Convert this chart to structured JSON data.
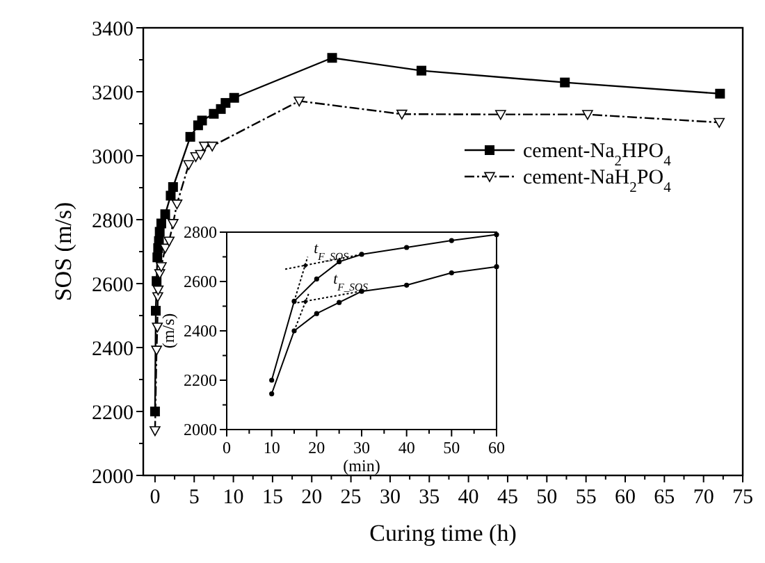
{
  "chart_data": [
    {
      "type": "line",
      "xlabel": "Curing time (h)",
      "ylabel": "SOS (m/s)",
      "xlim": [
        -1.5,
        75
      ],
      "ylim": [
        2000,
        3400
      ],
      "xticks": [
        0,
        {
          "value": 2.5,
          "label": null
        },
        5,
        {
          "value": 7.5,
          "label": null
        },
        10,
        {
          "value": 12.5,
          "label": null
        },
        15,
        {
          "value": 17.5,
          "label": null
        },
        20,
        {
          "value": 22.5,
          "label": null
        },
        25,
        {
          "value": 27.5,
          "label": null
        },
        30,
        {
          "value": 32.5,
          "label": null
        },
        35,
        {
          "value": 37.5,
          "label": null
        },
        40,
        {
          "value": 42.5,
          "label": null
        },
        45,
        {
          "value": 47.5,
          "label": null
        },
        50,
        {
          "value": 52.5,
          "label": null
        },
        55,
        {
          "value": 57.5,
          "label": null
        },
        60,
        {
          "value": 62.5,
          "label": null
        },
        65,
        {
          "value": 67.5,
          "label": null
        },
        70,
        {
          "value": 72.5,
          "label": null
        },
        75
      ],
      "yticks": [
        2000,
        {
          "value": 2100,
          "label": null
        },
        2200,
        {
          "value": 2300,
          "label": null
        },
        2400,
        {
          "value": 2500,
          "label": null
        },
        2600,
        {
          "value": 2700,
          "label": null
        },
        2800,
        {
          "value": 2900,
          "label": null
        },
        3000,
        {
          "value": 3100,
          "label": null
        },
        3200,
        {
          "value": 3300,
          "label": null
        },
        3400
      ],
      "grid": false,
      "legend": "right",
      "series": [
        {
          "name": "cement-Na$_{2}$HPO$_{4}$",
          "color": "#000000",
          "marker": "square",
          "line_style": "solid",
          "x": [
            0,
            0.1,
            0.2,
            0.3,
            0.4,
            0.5,
            0.6,
            0.8,
            1.3,
            2.0,
            2.3,
            4.5,
            5.5,
            6.0,
            7.5,
            8.4,
            9.0,
            10.1,
            22.6,
            34.0,
            52.3,
            72.1
          ],
          "values": [
            2200,
            2515,
            2608,
            2682,
            2711,
            2733,
            2762,
            2788,
            2817,
            2875,
            2902,
            3059,
            3095,
            3110,
            3131,
            3146,
            3165,
            3181,
            3306,
            3266,
            3229,
            3194
          ]
        },
        {
          "name": "cement-NaH$_{2}$PO$_{4}$",
          "color": "#000000",
          "marker": "triangle",
          "line_style": "dashed",
          "x": [
            0,
            0.2,
            0.3,
            0.35,
            0.4,
            0.6,
            0.8,
            1.3,
            1.8,
            2.3,
            2.8,
            4.3,
            5.2,
            5.8,
            6.3,
            7.3,
            18.4,
            31.5,
            44.1,
            55.2,
            72.0
          ],
          "values": [
            2140,
            2392,
            2464,
            2559,
            2580,
            2631,
            2653,
            2711,
            2733,
            2788,
            2849,
            2972,
            2997,
            3004,
            3030,
            3030,
            3171,
            3130,
            3129,
            3129,
            3104
          ]
        }
      ]
    },
    {
      "type": "line",
      "xlabel": "(min)",
      "ylabel": "(m/s)",
      "xlim": [
        0,
        60
      ],
      "ylim": [
        2000,
        2800
      ],
      "xticks": [
        0,
        {
          "value": 5,
          "label": null
        },
        10,
        {
          "value": 15,
          "label": null
        },
        20,
        {
          "value": 25,
          "label": null
        },
        30,
        {
          "value": 35,
          "label": null
        },
        40,
        {
          "value": 45,
          "label": null
        },
        50,
        {
          "value": 55,
          "label": null
        },
        60
      ],
      "yticks": [
        2000,
        {
          "value": 2100,
          "label": null
        },
        2200,
        {
          "value": 2300,
          "label": null
        },
        2400,
        {
          "value": 2500,
          "label": null
        },
        2600,
        {
          "value": 2700,
          "label": null
        },
        2800
      ],
      "grid": false,
      "legend": false,
      "annotations": [
        {
          "text": "t$_{F_SOS}$",
          "x": 17.5,
          "y": 2665
        },
        {
          "text": "t$_{F_SOS}$",
          "x": 17.5,
          "y": 2518
        }
      ],
      "series": [
        {
          "color": "#000000",
          "marker": "circle",
          "line_style": "solid",
          "x": [
            10,
            15,
            20,
            25,
            30,
            40,
            50,
            60
          ],
          "values": [
            2200,
            2520,
            2610,
            2680,
            2710,
            2738,
            2766,
            2790
          ]
        },
        {
          "color": "#000000",
          "marker": "circle",
          "line_style": "solid",
          "x": [
            10,
            15,
            20,
            25,
            30,
            40,
            50,
            60
          ],
          "values": [
            2145,
            2400,
            2470,
            2515,
            2560,
            2585,
            2635,
            2660
          ]
        },
        {
          "color": "#000000",
          "marker": "none",
          "line_style": "dotted",
          "x": [
            15,
            18
          ],
          "values": [
            2520,
            2700
          ]
        },
        {
          "color": "#000000",
          "marker": "none",
          "line_style": "dotted",
          "x": [
            13,
            30
          ],
          "values": [
            2650,
            2710
          ]
        },
        {
          "color": "#000000",
          "marker": "none",
          "line_style": "dotted",
          "x": [
            15,
            18.2
          ],
          "values": [
            2400,
            2550
          ]
        },
        {
          "color": "#000000",
          "marker": "none",
          "line_style": "dotted",
          "x": [
            14.8,
            30
          ],
          "values": [
            2511,
            2561
          ]
        },
        {
          "type": "scatter",
          "color": "#000000",
          "marker": "diamond",
          "x": [
            17.5,
            17.5
          ],
          "values": [
            2665,
            2518
          ]
        }
      ]
    }
  ]
}
